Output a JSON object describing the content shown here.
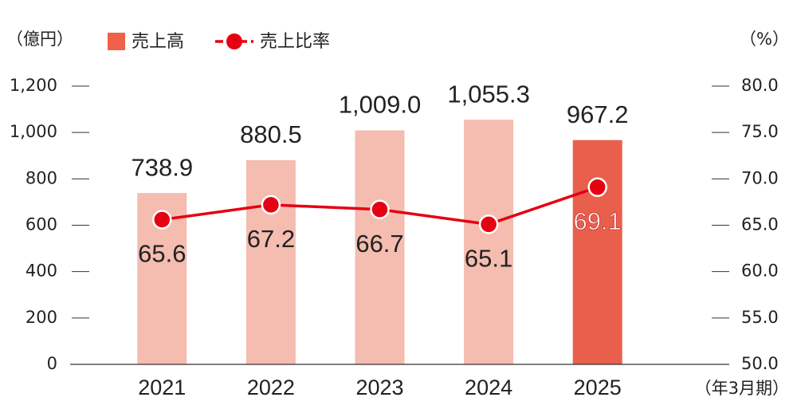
{
  "chart_data": {
    "type": "bar_line",
    "y_label": "（億円）",
    "y2_label": "（%）",
    "x_unit": "（年3月期）",
    "categories": [
      "2021",
      "2022",
      "2023",
      "2024",
      "2025"
    ],
    "series": [
      {
        "name": "売上高",
        "type": "bar",
        "color": "#f0604a",
        "colors": [
          "#f5bcb0",
          "#f5bcb0",
          "#f5bcb0",
          "#f5bcb0",
          "#e8604c"
        ],
        "values": [
          738.9,
          880.5,
          1009.0,
          1055.3,
          967.2
        ],
        "value_labels": [
          "738.9",
          "880.5",
          "1,009.0",
          "1,055.3",
          "967.2"
        ]
      },
      {
        "name": "売上比率",
        "type": "line",
        "axis": "y2",
        "color": "#e50012",
        "values": [
          65.6,
          67.2,
          66.7,
          65.1,
          69.1
        ]
      }
    ],
    "ylim": [
      0,
      1200
    ],
    "yticks": [
      0,
      200,
      400,
      600,
      800,
      {
        "value": 1000,
        "label": "1,000"
      },
      {
        "value": 1200,
        "label": "1,200"
      }
    ],
    "y2lim": [
      50,
      80
    ],
    "y2ticks": [
      {
        "value": 50,
        "label": "50.0"
      },
      {
        "value": 55,
        "label": "55.0"
      },
      {
        "value": 60,
        "label": "60.0"
      },
      {
        "value": 65,
        "label": "65.0"
      },
      {
        "value": 70,
        "label": "70.0"
      },
      {
        "value": 75,
        "label": "75.0"
      },
      {
        "value": 80,
        "label": "80.0"
      }
    ]
  }
}
